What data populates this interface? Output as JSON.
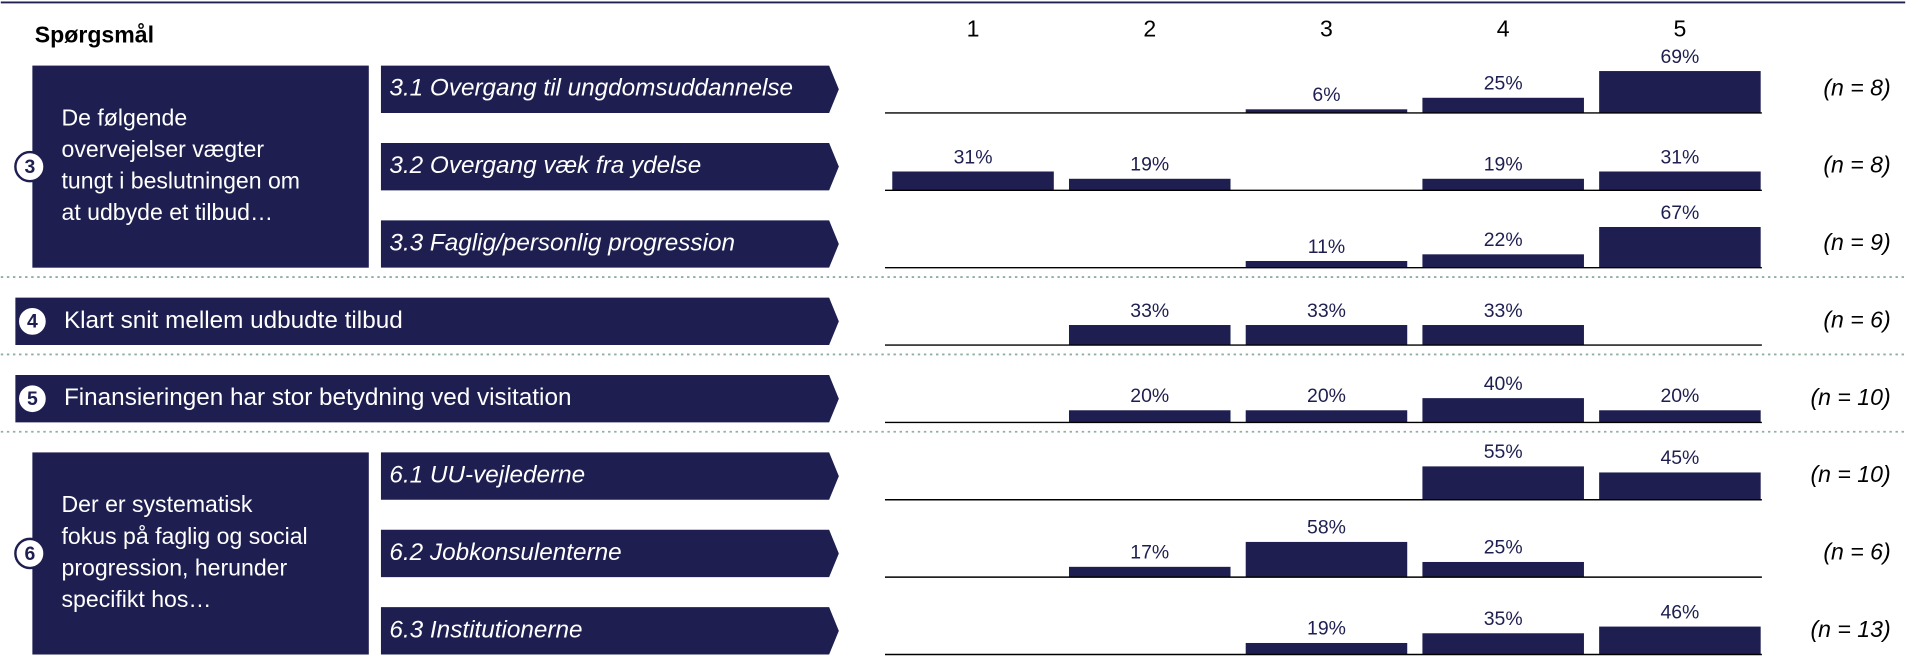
{
  "header": {
    "question": "Spørgsmål",
    "columns": [
      "1",
      "2",
      "3",
      "4",
      "5"
    ]
  },
  "color": "#1e1f50",
  "rows": [
    {
      "number": "3",
      "lines": [
        "De følgende",
        "overvejelser vægter",
        "tungt i beslutningen om",
        "at udbyde et tilbud…"
      ],
      "items": [
        {
          "label": "3.1 Overgang til ungdomsuddannelse",
          "values": [
            null,
            null,
            6,
            25,
            69
          ],
          "value_labels": [
            null,
            null,
            "6%",
            "25%",
            "69%"
          ],
          "n": "(n = 8)"
        },
        {
          "label": "3.2 Overgang væk fra ydelse",
          "values": [
            31,
            19,
            null,
            19,
            31
          ],
          "value_labels": [
            "31%",
            "19%",
            null,
            "19%",
            "31%"
          ],
          "n": "(n = 8)"
        },
        {
          "label": "3.3 Faglig/personlig progression",
          "values": [
            null,
            null,
            11,
            22,
            67
          ],
          "value_labels": [
            null,
            null,
            "11%",
            "22%",
            "67%"
          ],
          "n": "(n = 9)"
        }
      ]
    },
    {
      "number": "4",
      "label": "Klart snit mellem udbudte tilbud",
      "items": [
        {
          "values": [
            null,
            33,
            33,
            33,
            null
          ],
          "value_labels": [
            null,
            "33%",
            "33%",
            "33%",
            null
          ],
          "n": "(n = 6)"
        }
      ]
    },
    {
      "number": "5",
      "label": "Finansieringen har stor betydning ved visitation",
      "items": [
        {
          "values": [
            null,
            20,
            20,
            40,
            20
          ],
          "value_labels": [
            null,
            "20%",
            "20%",
            "40%",
            "20%"
          ],
          "n": "(n = 10)"
        }
      ]
    },
    {
      "number": "6",
      "lines": [
        "Der er systematisk",
        "fokus på faglig og social",
        "progression, herunder",
        "specifikt hos…"
      ],
      "items": [
        {
          "label": "6.1 UU-vejlederne",
          "values": [
            null,
            null,
            null,
            55,
            45
          ],
          "value_labels": [
            null,
            null,
            null,
            "55%",
            "45%"
          ],
          "n": "(n = 10)"
        },
        {
          "label": "6.2 Jobkonsulenterne",
          "values": [
            null,
            17,
            58,
            25,
            null
          ],
          "value_labels": [
            null,
            "17%",
            "58%",
            "25%",
            null
          ],
          "n": "(n = 6)"
        },
        {
          "label": "6.3 Institutionerne",
          "values": [
            null,
            null,
            19,
            35,
            46
          ],
          "value_labels": [
            null,
            null,
            "19%",
            "35%",
            "46%"
          ],
          "n": "(n = 13)"
        }
      ]
    }
  ]
}
